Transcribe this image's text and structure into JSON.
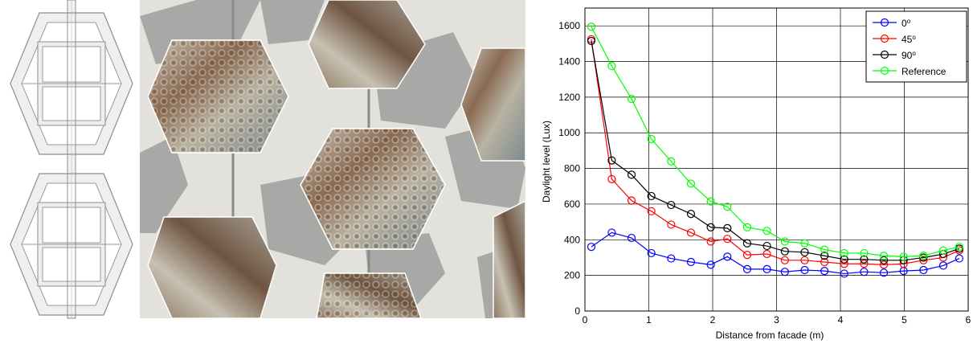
{
  "colors": {
    "blue": "#0000ff",
    "red": "#ff0000",
    "black": "#000000",
    "green": "#00ff00",
    "wall": "#e2e1dc",
    "shadow": "#a7a7a5",
    "frame_fill": "#f0f0f0",
    "frame_stroke": "#888888"
  },
  "icons": {
    "diagram": "hexagonal-frame-elevation",
    "photo": "textured-hexagon-panels-photo"
  },
  "chart_data": {
    "type": "line",
    "title": "",
    "xlabel": "Distance from facade (m)",
    "ylabel": "Daylight level (Lux)",
    "xlim": [
      0,
      6
    ],
    "ylim": [
      0,
      1700
    ],
    "x_ticks": [
      0,
      1,
      2,
      3,
      4,
      5,
      6
    ],
    "y_ticks": [
      0,
      200,
      400,
      600,
      800,
      1000,
      1200,
      1400,
      1600
    ],
    "grid": true,
    "legend_position": "top-right",
    "marker": "circle",
    "x": [
      0.1,
      0.42,
      0.73,
      1.04,
      1.35,
      1.66,
      1.97,
      2.23,
      2.54,
      2.85,
      3.13,
      3.44,
      3.75,
      4.06,
      4.37,
      4.68,
      4.99,
      5.3,
      5.61,
      5.86
    ],
    "series": [
      {
        "name": "0",
        "sup": "o",
        "color": "#0000ff",
        "values": [
          360,
          440,
          410,
          325,
          295,
          275,
          260,
          305,
          235,
          235,
          220,
          230,
          225,
          210,
          220,
          215,
          225,
          230,
          255,
          295
        ]
      },
      {
        "name": "45",
        "sup": "o",
        "color": "#ff0000",
        "values": [
          1525,
          740,
          620,
          560,
          485,
          440,
          390,
          405,
          315,
          320,
          285,
          285,
          275,
          265,
          265,
          260,
          265,
          285,
          300,
          340
        ]
      },
      {
        "name": "90",
        "sup": "o",
        "color": "#000000",
        "values": [
          1515,
          845,
          765,
          645,
          595,
          545,
          470,
          465,
          380,
          365,
          335,
          330,
          310,
          290,
          290,
          285,
          285,
          300,
          320,
          350
        ]
      },
      {
        "name": "Reference",
        "sup": "",
        "color": "#00ff00",
        "values": [
          1595,
          1375,
          1190,
          965,
          840,
          715,
          615,
          585,
          470,
          450,
          390,
          380,
          345,
          325,
          325,
          310,
          305,
          310,
          340,
          360
        ]
      }
    ]
  }
}
